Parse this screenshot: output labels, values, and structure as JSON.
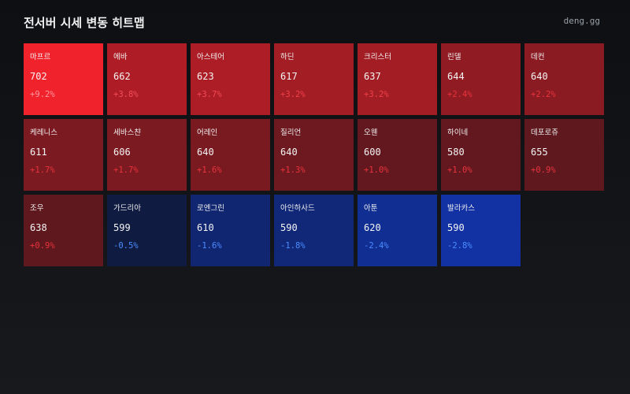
{
  "header": {
    "title": "전서버 시세 변동 히트맵",
    "brand": "deng.gg"
  },
  "tiles": [
    {
      "name": "마프르",
      "price": 702,
      "change": 9.2,
      "change_label": "+9.2%"
    },
    {
      "name": "에바",
      "price": 662,
      "change": 3.8,
      "change_label": "+3.8%"
    },
    {
      "name": "아스테어",
      "price": 623,
      "change": 3.7,
      "change_label": "+3.7%"
    },
    {
      "name": "하딘",
      "price": 617,
      "change": 3.2,
      "change_label": "+3.2%"
    },
    {
      "name": "크리스터",
      "price": 637,
      "change": 3.2,
      "change_label": "+3.2%"
    },
    {
      "name": "린델",
      "price": 644,
      "change": 2.4,
      "change_label": "+2.4%"
    },
    {
      "name": "데컨",
      "price": 640,
      "change": 2.2,
      "change_label": "+2.2%"
    },
    {
      "name": "케레니스",
      "price": 611,
      "change": 1.7,
      "change_label": "+1.7%"
    },
    {
      "name": "세바스챤",
      "price": 606,
      "change": 1.7,
      "change_label": "+1.7%"
    },
    {
      "name": "어레인",
      "price": 640,
      "change": 1.6,
      "change_label": "+1.6%"
    },
    {
      "name": "질리언",
      "price": 640,
      "change": 1.3,
      "change_label": "+1.3%"
    },
    {
      "name": "오웬",
      "price": 600,
      "change": 1.0,
      "change_label": "+1.0%"
    },
    {
      "name": "하이네",
      "price": 580,
      "change": 1.0,
      "change_label": "+1.0%"
    },
    {
      "name": "데포로쥬",
      "price": 655,
      "change": 0.9,
      "change_label": "+0.9%"
    },
    {
      "name": "조우",
      "price": 638,
      "change": 0.9,
      "change_label": "+0.9%"
    },
    {
      "name": "가드리아",
      "price": 599,
      "change": -0.5,
      "change_label": "-0.5%"
    },
    {
      "name": "로엔그린",
      "price": 610,
      "change": -1.6,
      "change_label": "-1.6%"
    },
    {
      "name": "아인하사드",
      "price": 590,
      "change": -1.8,
      "change_label": "-1.8%"
    },
    {
      "name": "아툰",
      "price": 620,
      "change": -2.4,
      "change_label": "-2.4%"
    },
    {
      "name": "발라카스",
      "price": 590,
      "change": -2.8,
      "change_label": "-2.8%"
    }
  ]
}
